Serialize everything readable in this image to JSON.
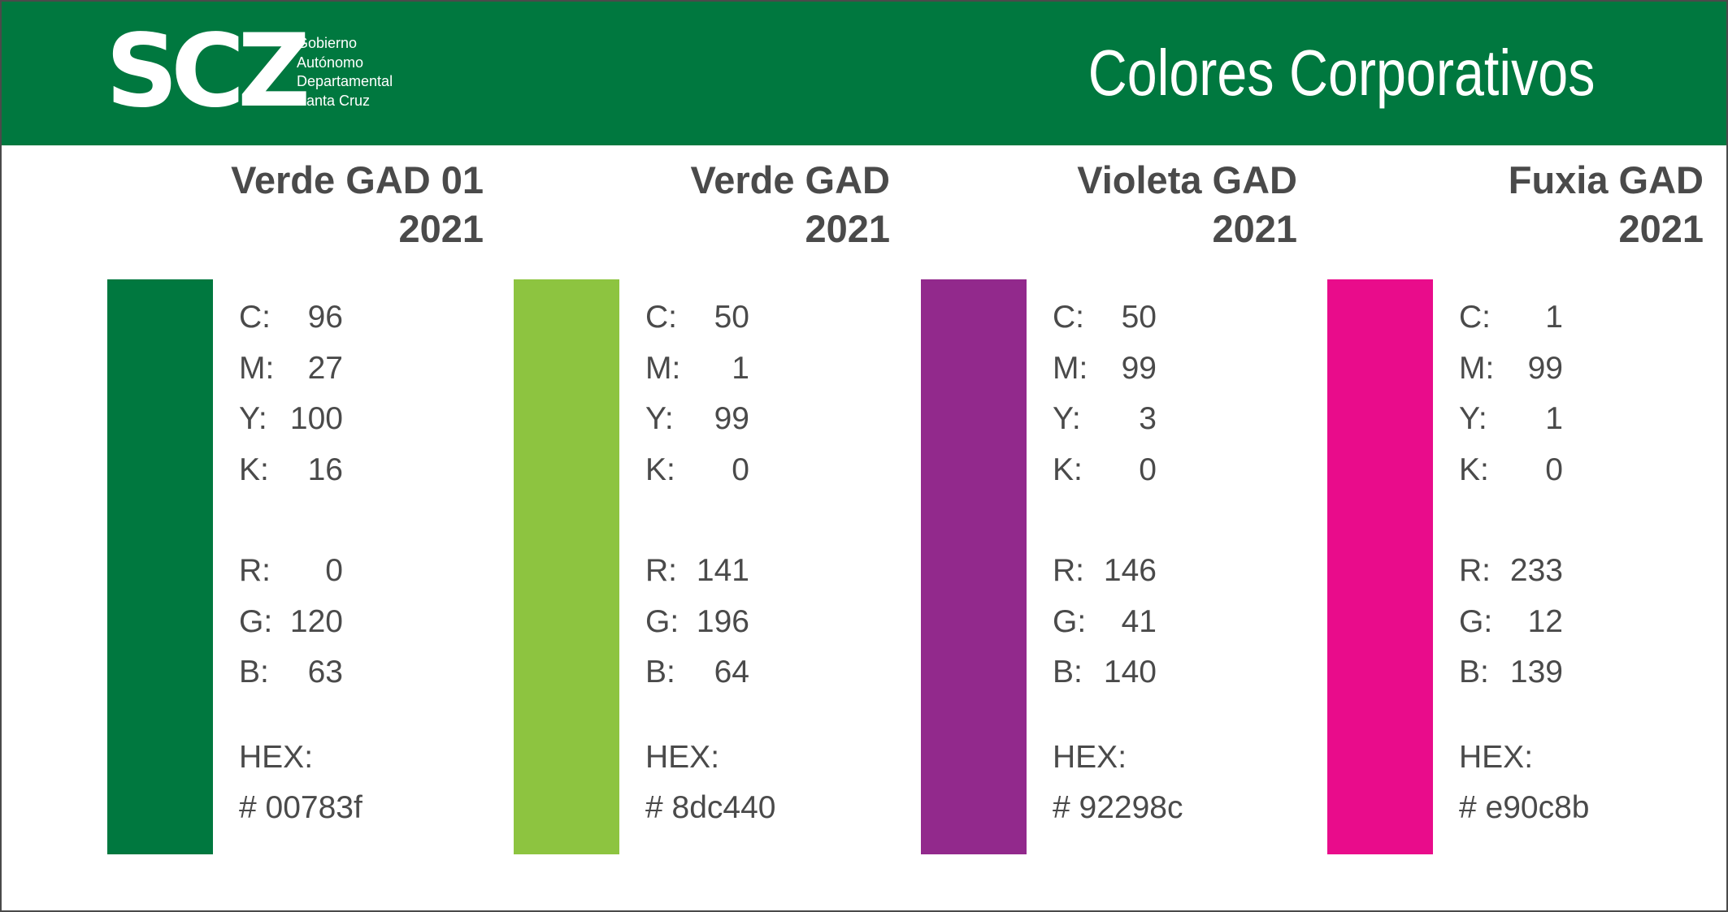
{
  "header": {
    "logo_mark": "SCZ",
    "logo_lines": [
      "Gobierno",
      "Autónomo",
      "Departamental",
      "Santa Cruz"
    ],
    "title": "Colores Corporativos",
    "background": "#00783f"
  },
  "labels": {
    "c": "C:",
    "m": "M:",
    "y": "Y:",
    "k": "K:",
    "r": "R:",
    "g": "G:",
    "b": "B:",
    "hex": "HEX:"
  },
  "colors": [
    {
      "name": "Verde GAD 01",
      "year": "2021",
      "swatch": "#00783f",
      "c": "96",
      "m": "27",
      "y": "100",
      "k": "16",
      "r": "0",
      "g": "120",
      "b": "63",
      "hex": "# 00783f"
    },
    {
      "name": "Verde GAD",
      "year": "2021",
      "swatch": "#8dc440",
      "c": "50",
      "m": "1",
      "y": "99",
      "k": "0",
      "r": "141",
      "g": "196",
      "b": "64",
      "hex": "# 8dc440"
    },
    {
      "name": "Violeta GAD",
      "year": "2021",
      "swatch": "#92298c",
      "c": "50",
      "m": "99",
      "y": "3",
      "k": "0",
      "r": "146",
      "g": "41",
      "b": "140",
      "hex": "# 92298c"
    },
    {
      "name": "Fuxia GAD",
      "year": "2021",
      "swatch": "#e90c8b",
      "c": "1",
      "m": "99",
      "y": "1",
      "k": "0",
      "r": "233",
      "g": "12",
      "b": "139",
      "hex": "# e90c8b"
    }
  ]
}
